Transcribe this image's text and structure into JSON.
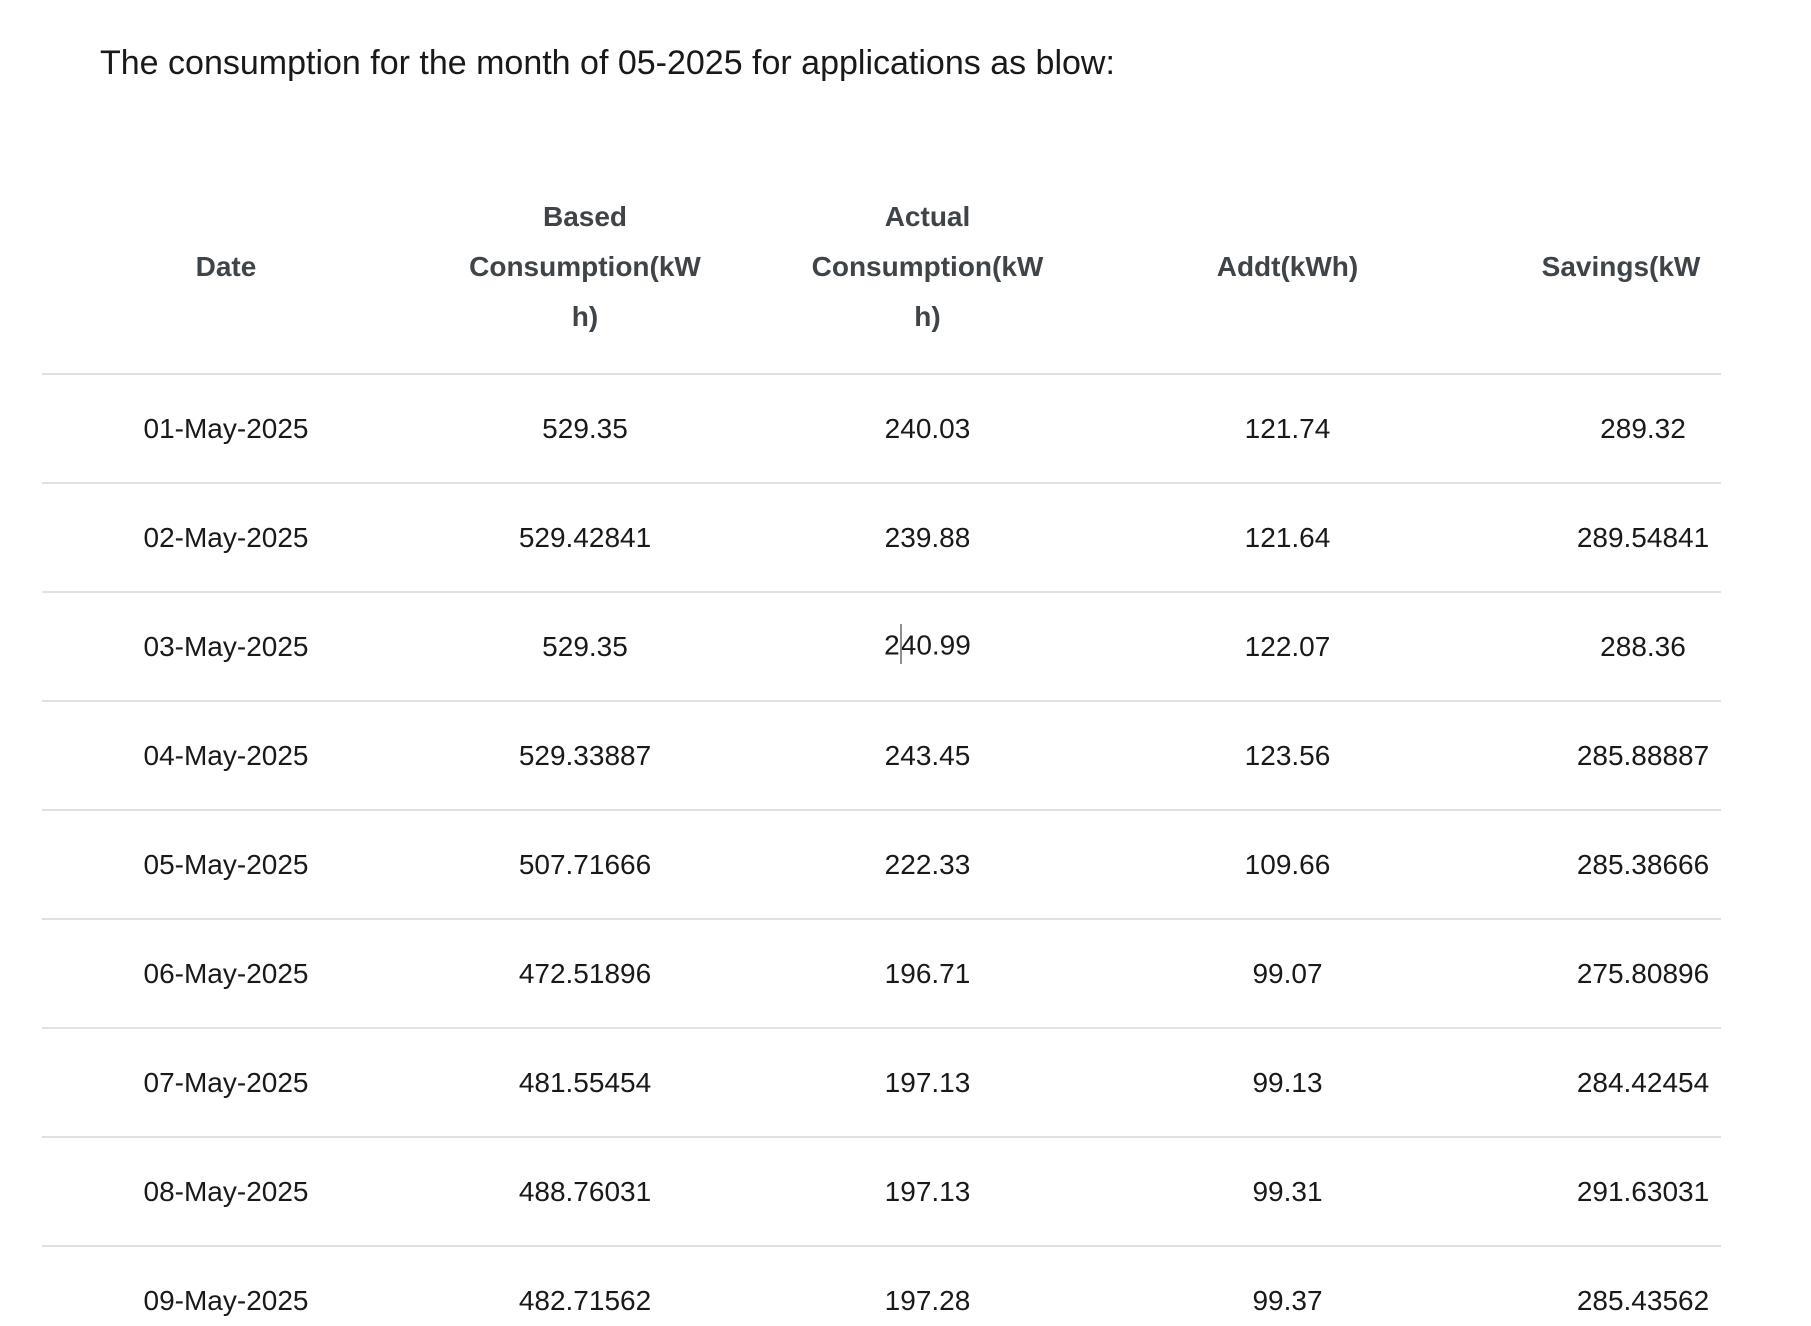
{
  "page": {
    "title": "The consumption for the month of 05-2025 for applications as blow:"
  },
  "table": {
    "columns": [
      {
        "id": "date",
        "label": "Date",
        "lines": [
          "Date"
        ]
      },
      {
        "id": "based-consumption",
        "label": "Based Consumption(kWh)",
        "lines": [
          "Based",
          "Consumption(kW",
          "h)"
        ]
      },
      {
        "id": "actual-consumption",
        "label": "Actual Consumption(kWh)",
        "lines": [
          "Actual",
          "Consumption(kW",
          "h)"
        ]
      },
      {
        "id": "addt",
        "label": "Addt(kWh)",
        "lines": [
          "Addt(kWh)"
        ]
      },
      {
        "id": "savings",
        "label": "Savings(kW",
        "lines": [
          "Savings(kW"
        ]
      }
    ],
    "rows": [
      [
        "01-May-2025",
        "529.35",
        "240.03",
        "121.74",
        "289.32"
      ],
      [
        "02-May-2025",
        "529.42841",
        "239.88",
        "121.64",
        "289.54841"
      ],
      [
        "03-May-2025",
        "529.35",
        "240.99",
        "122.07",
        "288.36"
      ],
      [
        "04-May-2025",
        "529.33887",
        "243.45",
        "123.56",
        "285.88887"
      ],
      [
        "05-May-2025",
        "507.71666",
        "222.33",
        "109.66",
        "285.38666"
      ],
      [
        "06-May-2025",
        "472.51896",
        "196.71",
        "99.07",
        "275.80896"
      ],
      [
        "07-May-2025",
        "481.55454",
        "197.13",
        "99.13",
        "284.42454"
      ],
      [
        "08-May-2025",
        "488.76031",
        "197.13",
        "99.31",
        "291.63031"
      ],
      [
        "09-May-2025",
        "482.71562",
        "197.28",
        "99.37",
        "285.43562"
      ]
    ],
    "caret": {
      "row": 2,
      "col": 2,
      "before": "2",
      "after": "40.99"
    }
  },
  "colors": {
    "header_text": "#3f4448",
    "body_text": "#17191b",
    "divider": "#dde2e7",
    "caret": "#8f8f8f",
    "background": "#ffffff"
  }
}
